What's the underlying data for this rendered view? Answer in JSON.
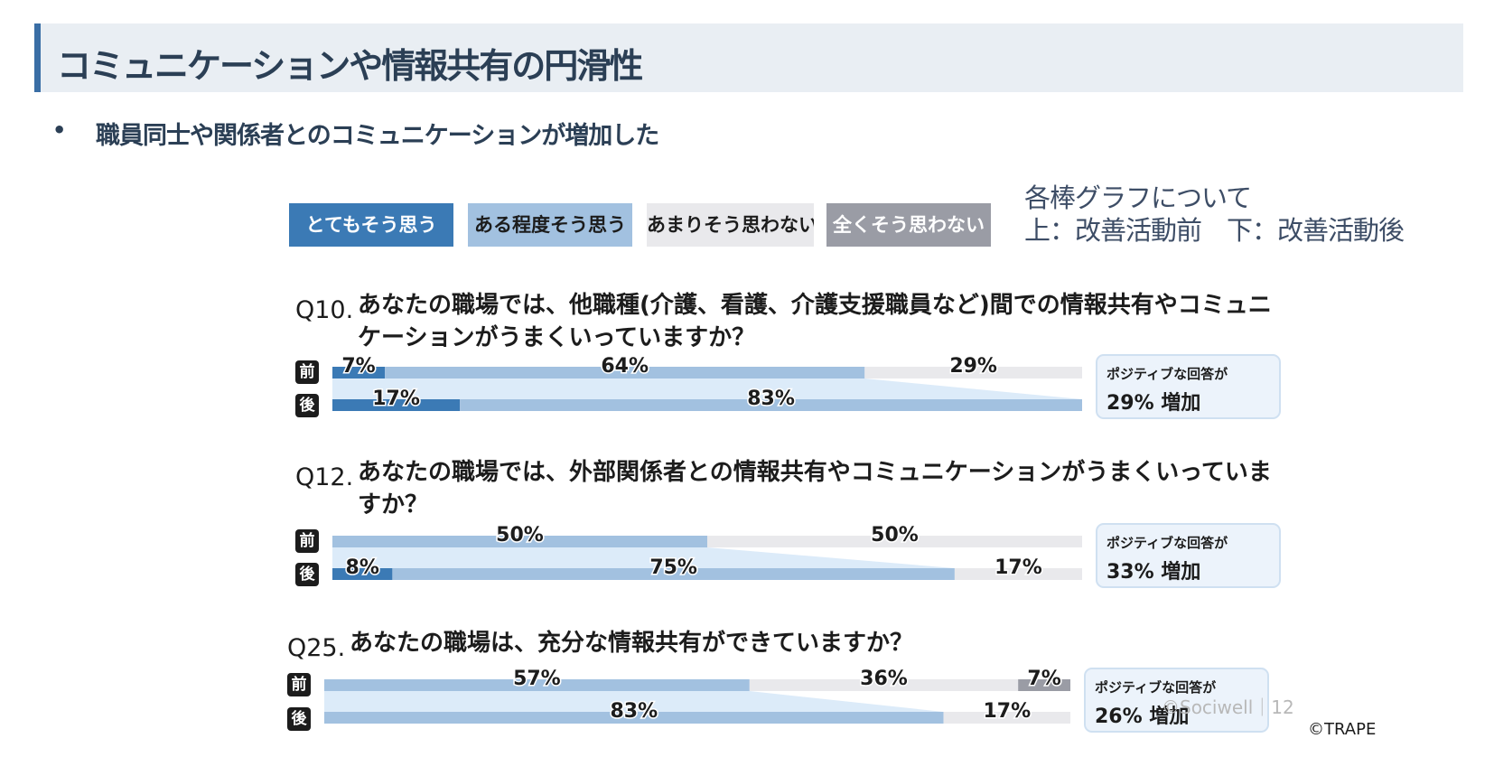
{
  "title": "コミュニケーションや情報共有の円滑性",
  "bullet": {
    "marker": "•",
    "text": "職員同士や関係者とのコミュニケーションが増加した"
  },
  "legend": {
    "items": [
      {
        "label": "とてもそう思う",
        "color": "#3b7ab5"
      },
      {
        "label": "ある程度そう思う",
        "color": "#a2c1e0"
      },
      {
        "label": "あまりそう思わない",
        "color": "#e9e9ec"
      },
      {
        "label": "全くそう思わない",
        "color": "#9a9ca5"
      }
    ]
  },
  "note": {
    "line1": "各棒グラフについて",
    "line2": "上：改善活動前　下：改善活動後"
  },
  "row_labels": {
    "before": "前",
    "after": "後"
  },
  "positive_label": "ポジティブな回答が",
  "chart_data": {
    "type": "bar",
    "stacked": true,
    "orientation": "horizontal",
    "unit": "%",
    "categories": [
      "とてもそう思う",
      "ある程度そう思う",
      "あまりそう思わない",
      "全くそう思わない"
    ],
    "colors": [
      "#3b7ab5",
      "#a2c1e0",
      "#e9e9ec",
      "#9a9ca5"
    ],
    "questions": [
      {
        "id": "Q10.",
        "text": "あなたの職場では、他職種(介護、看護、介護支援職員など)間での情報共有やコミュニケーションがうまくいっていますか？",
        "before": [
          7,
          64,
          29,
          0
        ],
        "after": [
          17,
          83,
          0,
          0
        ],
        "positive_increase": "29% 増加"
      },
      {
        "id": "Q12.",
        "text": "あなたの職場では、外部関係者との情報共有やコミュニケーションがうまくいっていますか？",
        "before": [
          0,
          50,
          50,
          0
        ],
        "after": [
          8,
          75,
          17,
          0
        ],
        "positive_increase": "33% 増加"
      },
      {
        "id": "Q25.",
        "text": "あなたの職場は、充分な情報共有ができていますか？",
        "before": [
          0,
          57,
          36,
          7
        ],
        "after": [
          0,
          83,
          17,
          0
        ],
        "positive_increase": "26% 増加"
      }
    ]
  },
  "footer": {
    "sociwell": "©Sociwell｜12",
    "copyright": "©TRAPE"
  }
}
